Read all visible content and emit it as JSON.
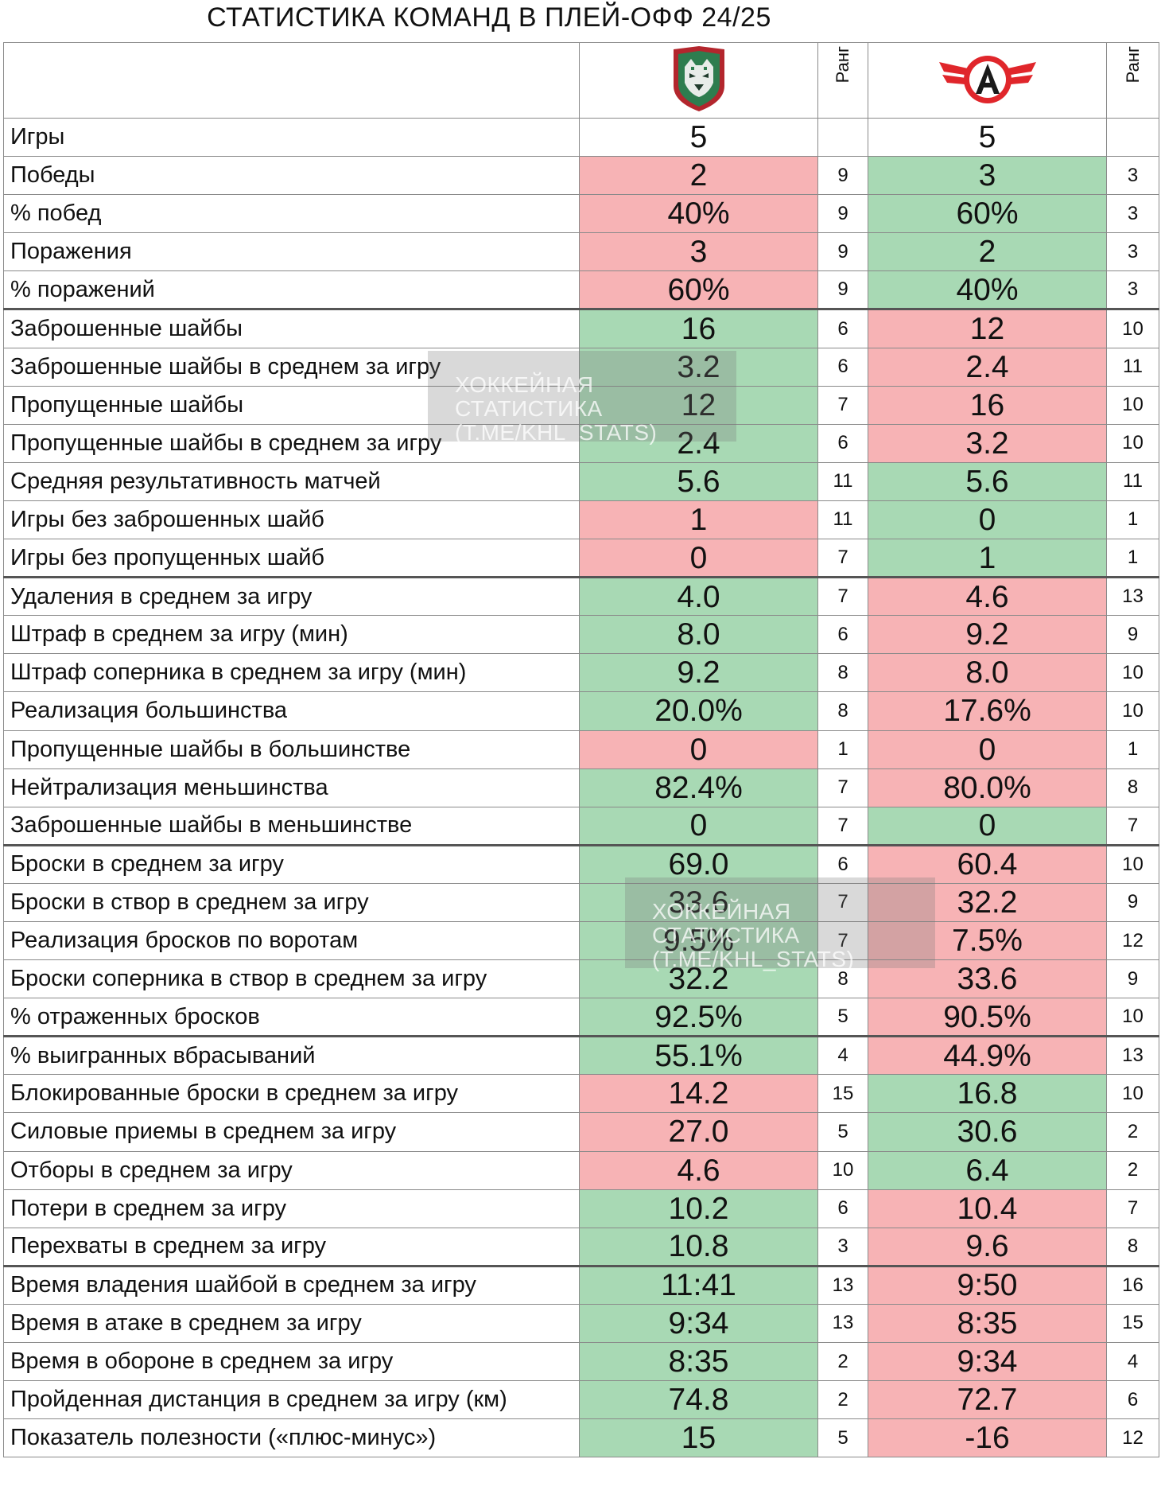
{
  "title": "СТАТИСТИКА КОМАНД В ПЛЕЙ-ОФФ 24/25",
  "header": {
    "rank_left": "Ранг",
    "rank_right": "Ранг"
  },
  "watermark": {
    "line1": "ХОККЕЙНАЯ СТАТИСТИКА",
    "line2": "(T.ME/KHL_STATS)"
  },
  "colors": {
    "good": "#a8d9b4",
    "bad": "#f7b3b5",
    "logo_left": "#2e7d4f",
    "logo_right": "#e0262b"
  },
  "rows": [
    {
      "label": "Игры",
      "v1": "5",
      "r1": "",
      "v2": "5",
      "r2": "",
      "c1": "neutral",
      "c2": "neutral"
    },
    {
      "label": "Победы",
      "v1": "2",
      "r1": "9",
      "v2": "3",
      "r2": "3",
      "c1": "bad",
      "c2": "good"
    },
    {
      "label": "% побед",
      "v1": "40%",
      "r1": "9",
      "v2": "60%",
      "r2": "3",
      "c1": "bad",
      "c2": "good"
    },
    {
      "label": "Поражения",
      "v1": "3",
      "r1": "9",
      "v2": "2",
      "r2": "3",
      "c1": "bad",
      "c2": "good"
    },
    {
      "label": "% поражений",
      "v1": "60%",
      "r1": "9",
      "v2": "40%",
      "r2": "3",
      "c1": "bad",
      "c2": "good"
    },
    {
      "label": "Заброшенные шайбы",
      "v1": "16",
      "r1": "6",
      "v2": "12",
      "r2": "10",
      "c1": "good",
      "c2": "bad",
      "group": true
    },
    {
      "label": "Заброшенные шайбы в среднем за игру",
      "v1": "3.2",
      "r1": "6",
      "v2": "2.4",
      "r2": "11",
      "c1": "good",
      "c2": "bad"
    },
    {
      "label": "Пропущенные шайбы",
      "v1": "12",
      "r1": "7",
      "v2": "16",
      "r2": "10",
      "c1": "good",
      "c2": "bad"
    },
    {
      "label": "Пропущенные шайбы в среднем за игру",
      "v1": "2.4",
      "r1": "6",
      "v2": "3.2",
      "r2": "10",
      "c1": "good",
      "c2": "bad"
    },
    {
      "label": "Средняя результативность матчей",
      "v1": "5.6",
      "r1": "11",
      "v2": "5.6",
      "r2": "11",
      "c1": "good",
      "c2": "good"
    },
    {
      "label": "Игры без заброшенных шайб",
      "v1": "1",
      "r1": "11",
      "v2": "0",
      "r2": "1",
      "c1": "bad",
      "c2": "good"
    },
    {
      "label": "Игры без пропущенных шайб",
      "v1": "0",
      "r1": "7",
      "v2": "1",
      "r2": "1",
      "c1": "bad",
      "c2": "good"
    },
    {
      "label": "Удаления в среднем за игру",
      "v1": "4.0",
      "r1": "7",
      "v2": "4.6",
      "r2": "13",
      "c1": "good",
      "c2": "bad",
      "group": true
    },
    {
      "label": "Штраф в среднем за игру (мин)",
      "v1": "8.0",
      "r1": "6",
      "v2": "9.2",
      "r2": "9",
      "c1": "good",
      "c2": "bad"
    },
    {
      "label": "Штраф соперника в среднем за игру (мин)",
      "v1": "9.2",
      "r1": "8",
      "v2": "8.0",
      "r2": "10",
      "c1": "good",
      "c2": "bad"
    },
    {
      "label": "Реализация большинства",
      "v1": "20.0%",
      "r1": "8",
      "v2": "17.6%",
      "r2": "10",
      "c1": "good",
      "c2": "bad"
    },
    {
      "label": "Пропущенные шайбы в большинстве",
      "v1": "0",
      "r1": "1",
      "v2": "0",
      "r2": "1",
      "c1": "bad",
      "c2": "bad"
    },
    {
      "label": "Нейтрализация меньшинства",
      "v1": "82.4%",
      "r1": "7",
      "v2": "80.0%",
      "r2": "8",
      "c1": "good",
      "c2": "bad"
    },
    {
      "label": "Заброшенные шайбы в меньшинстве",
      "v1": "0",
      "r1": "7",
      "v2": "0",
      "r2": "7",
      "c1": "good",
      "c2": "good"
    },
    {
      "label": "Броски в среднем за игру",
      "v1": "69.0",
      "r1": "6",
      "v2": "60.4",
      "r2": "10",
      "c1": "good",
      "c2": "bad",
      "group": true
    },
    {
      "label": "Броски в створ в среднем за игру",
      "v1": "33.6",
      "r1": "7",
      "v2": "32.2",
      "r2": "9",
      "c1": "good",
      "c2": "bad"
    },
    {
      "label": "Реализация бросков по воротам",
      "v1": "9.5%",
      "r1": "7",
      "v2": "7.5%",
      "r2": "12",
      "c1": "good",
      "c2": "bad"
    },
    {
      "label": "Броски соперника в створ в среднем за игру",
      "v1": "32.2",
      "r1": "8",
      "v2": "33.6",
      "r2": "9",
      "c1": "good",
      "c2": "bad"
    },
    {
      "label": "% отраженных бросков",
      "v1": "92.5%",
      "r1": "5",
      "v2": "90.5%",
      "r2": "10",
      "c1": "good",
      "c2": "bad"
    },
    {
      "label": "% выигранных вбрасываний",
      "v1": "55.1%",
      "r1": "4",
      "v2": "44.9%",
      "r2": "13",
      "c1": "good",
      "c2": "bad",
      "group": true
    },
    {
      "label": "Блокированные броски в среднем за игру",
      "v1": "14.2",
      "r1": "15",
      "v2": "16.8",
      "r2": "10",
      "c1": "bad",
      "c2": "good"
    },
    {
      "label": "Силовые приемы в среднем за игру",
      "v1": "27.0",
      "r1": "5",
      "v2": "30.6",
      "r2": "2",
      "c1": "bad",
      "c2": "good"
    },
    {
      "label": "Отборы в среднем за игру",
      "v1": "4.6",
      "r1": "10",
      "v2": "6.4",
      "r2": "2",
      "c1": "bad",
      "c2": "good"
    },
    {
      "label": "Потери в среднем за игру",
      "v1": "10.2",
      "r1": "6",
      "v2": "10.4",
      "r2": "7",
      "c1": "good",
      "c2": "bad"
    },
    {
      "label": "Перехваты в среднем за игру",
      "v1": "10.8",
      "r1": "3",
      "v2": "9.6",
      "r2": "8",
      "c1": "good",
      "c2": "bad"
    },
    {
      "label": "Время владения шайбой в среднем за игру",
      "v1": "11:41",
      "r1": "13",
      "v2": "9:50",
      "r2": "16",
      "c1": "good",
      "c2": "bad",
      "group": true
    },
    {
      "label": "Время в атаке в среднем за игру",
      "v1": "9:34",
      "r1": "13",
      "v2": "8:35",
      "r2": "15",
      "c1": "good",
      "c2": "bad"
    },
    {
      "label": "Время в обороне в среднем за игру",
      "v1": "8:35",
      "r1": "2",
      "v2": "9:34",
      "r2": "4",
      "c1": "good",
      "c2": "bad"
    },
    {
      "label": "Пройденная дистанция в среднем за игру (км)",
      "v1": "74.8",
      "r1": "2",
      "v2": "72.7",
      "r2": "6",
      "c1": "good",
      "c2": "bad"
    },
    {
      "label": "Показатель полезности («плюс-минус»)",
      "v1": "15",
      "r1": "5",
      "v2": "-16",
      "r2": "12",
      "c1": "good",
      "c2": "bad"
    }
  ]
}
